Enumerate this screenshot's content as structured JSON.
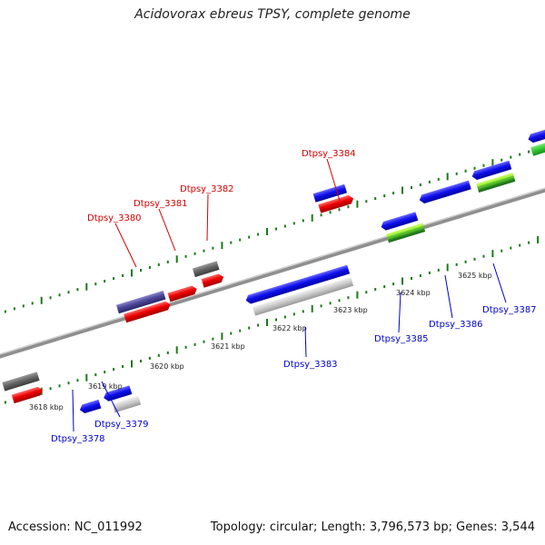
{
  "title": "Acidovorax ebreus TPSY, complete genome",
  "footer": {
    "accession": "Accession: NC_011992",
    "stats": "Topology: circular; Length: 3,796,573 bp; Genes: 3,544"
  },
  "colors": {
    "forward_label": "#d40000",
    "reverse_label": "#0000cc",
    "tick": "#1a7a1a",
    "backbone": "#8f8f8f"
  },
  "scale_labels": [
    "3618 kbp",
    "3619 kbp",
    "3620 kbp",
    "3621 kbp",
    "3622 kbp",
    "3623 kbp",
    "3624 kbp",
    "3625 kbp"
  ],
  "genes": [
    {
      "name": "Dtpsy_3378",
      "strand": "reverse"
    },
    {
      "name": "Dtpsy_3379",
      "strand": "reverse"
    },
    {
      "name": "Dtpsy_3380",
      "strand": "forward"
    },
    {
      "name": "Dtpsy_3381",
      "strand": "forward"
    },
    {
      "name": "Dtpsy_3382",
      "strand": "forward"
    },
    {
      "name": "Dtpsy_3383",
      "strand": "reverse"
    },
    {
      "name": "Dtpsy_3384",
      "strand": "forward"
    },
    {
      "name": "Dtpsy_3385",
      "strand": "reverse"
    },
    {
      "name": "Dtpsy_3386",
      "strand": "reverse"
    },
    {
      "name": "Dtpsy_3387",
      "strand": "reverse"
    }
  ]
}
